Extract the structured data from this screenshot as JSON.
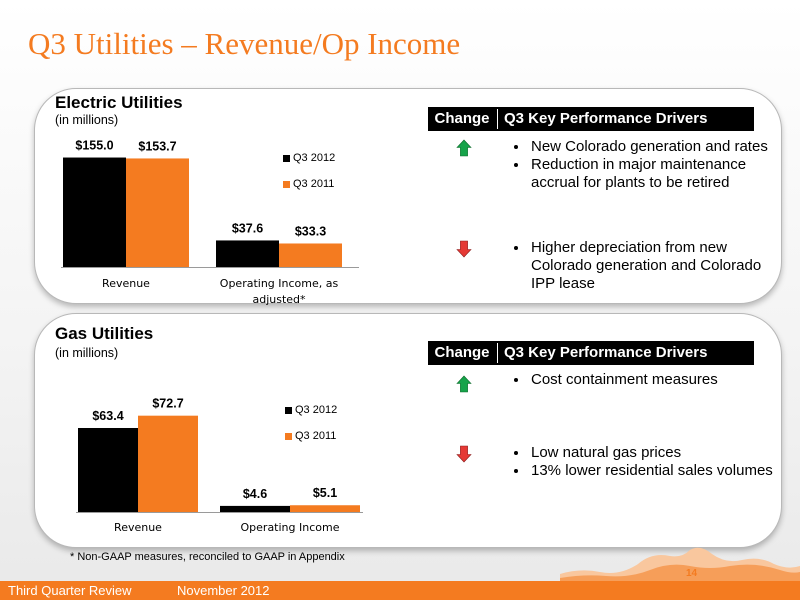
{
  "slide": {
    "title": "Q3 Utilities – Revenue/Op Income",
    "footnote": "* Non-GAAP measures, reconciled to GAAP in Appendix",
    "footer_left": "Third Quarter Review",
    "footer_date": "November 2012",
    "page_number": "14"
  },
  "colors": {
    "accent": "#f47b20",
    "q3_2012": "#000000",
    "q3_2011": "#f47b20",
    "up_arrow": "#16a34a",
    "down_arrow": "#e53935"
  },
  "drivers_header": {
    "change": "Change",
    "title": "Q3 Key Performance Drivers"
  },
  "electric": {
    "title": "Electric Utilities",
    "subtitle": "(in millions)",
    "legend": [
      "Q3 2012",
      "Q3 2011"
    ],
    "up_icon": "arrow-up-icon",
    "down_icon": "arrow-down-icon",
    "up_drivers": [
      "New Colorado generation and rates",
      "Reduction in major maintenance accrual for plants to be retired"
    ],
    "down_drivers": [
      "Higher depreciation from new Colorado generation and Colorado IPP lease"
    ]
  },
  "gas": {
    "title": "Gas Utilities",
    "subtitle": "(in millions)",
    "legend": [
      "Q3 2012",
      "Q3 2011"
    ],
    "up_icon": "arrow-up-icon",
    "down_icon": "arrow-down-icon",
    "up_drivers": [
      "Cost containment measures"
    ],
    "down_drivers": [
      "Low natural gas prices",
      "13% lower residential sales volumes"
    ]
  },
  "chart_data": [
    {
      "type": "bar",
      "categories": [
        "Revenue",
        "Operating Income, as adjusted*"
      ],
      "series": [
        {
          "name": "Q3 2012",
          "values": [
            155.0,
            37.6
          ],
          "labels": [
            "$155.0",
            "$37.6"
          ]
        },
        {
          "name": "Q3 2011",
          "values": [
            153.7,
            33.3
          ],
          "labels": [
            "$153.7",
            "$33.3"
          ]
        }
      ],
      "title": "",
      "xlabel": "",
      "ylabel": "",
      "ylim": [
        0,
        160
      ],
      "grid": false,
      "legend": "right"
    },
    {
      "type": "bar",
      "categories": [
        "Revenue",
        "Operating Income"
      ],
      "series": [
        {
          "name": "Q3 2012",
          "values": [
            63.4,
            4.6
          ],
          "labels": [
            "$63.4",
            "$4.6"
          ]
        },
        {
          "name": "Q3 2011",
          "values": [
            72.7,
            5.1
          ],
          "labels": [
            "$72.7",
            "$5.1"
          ]
        }
      ],
      "title": "",
      "xlabel": "",
      "ylabel": "",
      "ylim": [
        0,
        80
      ],
      "grid": false,
      "legend": "right"
    }
  ]
}
